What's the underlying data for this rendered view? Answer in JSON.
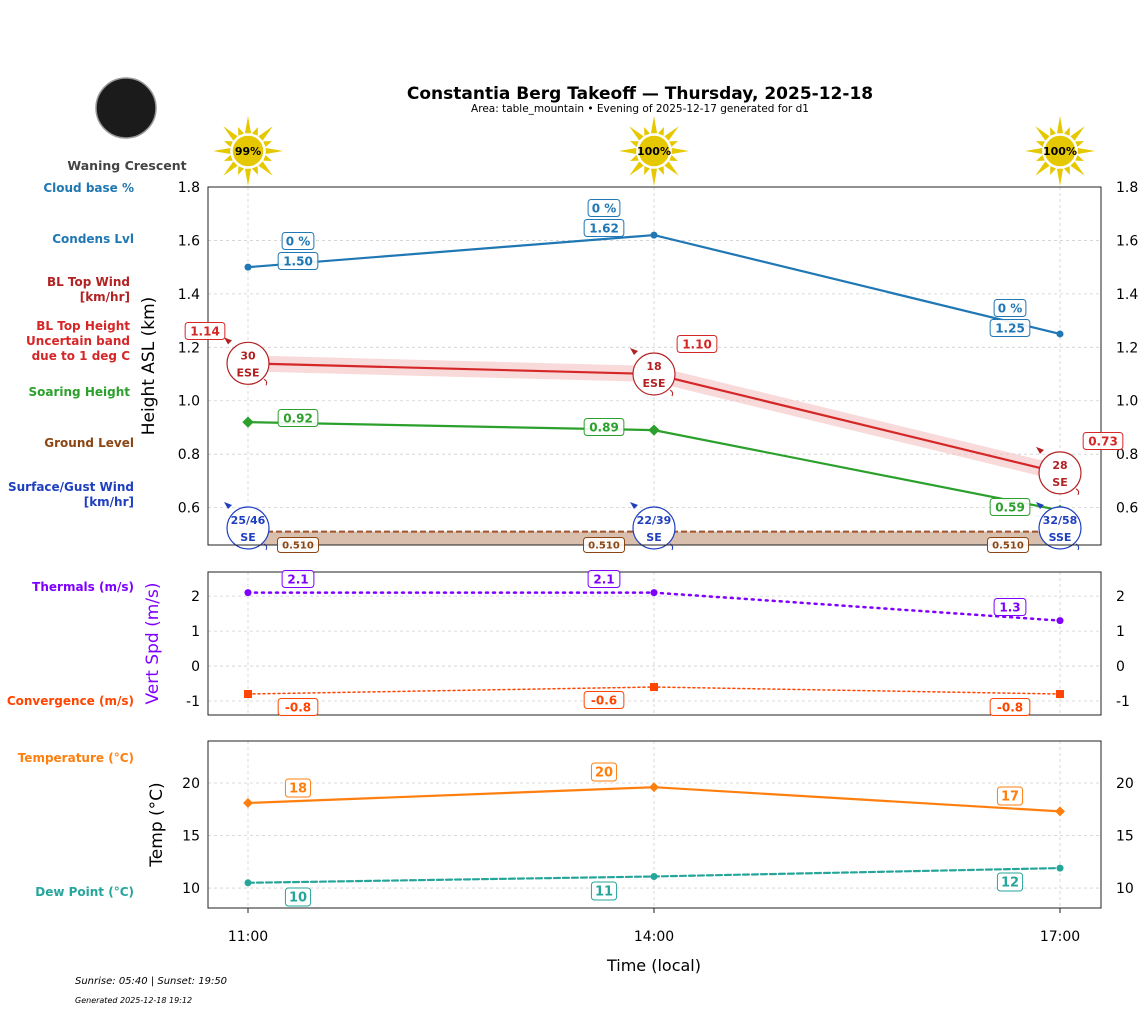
{
  "title": "Constantia Berg Takeoff — Thursday, 2025-12-18",
  "subtitle": "Area: table_mountain • Evening of 2025-12-17 generated for d1",
  "moon_phase": "Waning Crescent",
  "footer": {
    "sun_times": "Sunrise: 05:40 | Sunset: 19:50",
    "generated": "Generated 2025-12-18 19:12"
  },
  "left_labels": {
    "cloud_base": "Cloud base %",
    "condens": "Condens Lvl",
    "bl_wind": [
      "BL Top Wind",
      "[km/hr]"
    ],
    "bl_height": [
      "BL Top Height",
      "Uncertain band",
      "due to 1 deg C"
    ],
    "soaring": "Soaring Height",
    "ground": "Ground Level",
    "surface_wind": [
      "Surface/Gust Wind",
      "[km/hr]"
    ],
    "thermals": "Thermals (m/s)",
    "convergence": "Convergence (m/s)",
    "temperature": "Temperature (°C)",
    "dew_point": "Dew Point (°C)"
  },
  "colors": {
    "condens": "#1f77b4",
    "bl_top": "#d62728",
    "bl_wind": "#b22222",
    "soaring": "#2ca02c",
    "ground": "#8b4513",
    "surface_wind": "#1f3fbf",
    "thermals": "#8000ff",
    "convergence": "#ff4500",
    "temperature": "#ff7f0e",
    "dew_point": "#26a69a",
    "sun": "#e6c800"
  },
  "chart_data": [
    {
      "type": "line",
      "ylabel": "Height ASL (km)",
      "x": [
        "11:00",
        "14:00",
        "17:00"
      ],
      "ylim": [
        0.46,
        1.8
      ],
      "yticks": [
        0.6,
        0.8,
        1.0,
        1.2,
        1.4,
        1.6,
        1.8
      ],
      "grid": true,
      "sun_percent": [
        "99%",
        "100%",
        "100%"
      ],
      "series": [
        {
          "key": "condens",
          "values": [
            1.5,
            1.62,
            1.25
          ],
          "labels": [
            "1.50",
            "1.62",
            "1.25"
          ],
          "cloud_pct": [
            "0 %",
            "0 %",
            "0 %"
          ]
        },
        {
          "key": "bl_top",
          "values": [
            1.14,
            1.1,
            0.73
          ],
          "labels": [
            "1.14",
            "1.10",
            "0.73"
          ],
          "uncertainty": 0.03
        },
        {
          "key": "soaring",
          "values": [
            0.92,
            0.89,
            0.59
          ],
          "labels": [
            "0.92",
            "0.89",
            "0.59"
          ]
        },
        {
          "key": "ground",
          "values": [
            0.51,
            0.51,
            0.51
          ],
          "labels": [
            "0.510",
            "0.510",
            "0.510"
          ]
        }
      ],
      "bl_wind": [
        {
          "speed": "30",
          "dir": "ESE"
        },
        {
          "speed": "18",
          "dir": "ESE"
        },
        {
          "speed": "28",
          "dir": "SE"
        }
      ],
      "surface_wind": [
        {
          "speed": "25/46",
          "dir": "SE"
        },
        {
          "speed": "22/39",
          "dir": "SE"
        },
        {
          "speed": "32/58",
          "dir": "SSE"
        }
      ]
    },
    {
      "type": "line",
      "ylabel": "Vert Spd (m/s)",
      "x": [
        "11:00",
        "14:00",
        "17:00"
      ],
      "ylim": [
        -1.4,
        2.69
      ],
      "yticks": [
        -1,
        0,
        1,
        2
      ],
      "grid": true,
      "series": [
        {
          "key": "thermals",
          "values": [
            2.1,
            2.1,
            1.3
          ],
          "labels": [
            "2.1",
            "2.1",
            "1.3"
          ]
        },
        {
          "key": "convergence",
          "values": [
            -0.8,
            -0.6,
            -0.8
          ],
          "labels": [
            "-0.8",
            "-0.6",
            "-0.8"
          ]
        }
      ]
    },
    {
      "type": "line",
      "ylabel": "Temp (°C)",
      "xlabel": "Time (local)",
      "x": [
        "11:00",
        "14:00",
        "17:00"
      ],
      "ylim": [
        8.1,
        24
      ],
      "yticks": [
        10,
        15,
        20
      ],
      "grid": true,
      "series": [
        {
          "key": "temperature",
          "values": [
            18.1,
            19.6,
            17.3
          ],
          "labels": [
            "18",
            "20",
            "17"
          ]
        },
        {
          "key": "dew_point",
          "values": [
            10.5,
            11.1,
            11.9
          ],
          "labels": [
            "10",
            "11",
            "12"
          ]
        }
      ]
    }
  ]
}
